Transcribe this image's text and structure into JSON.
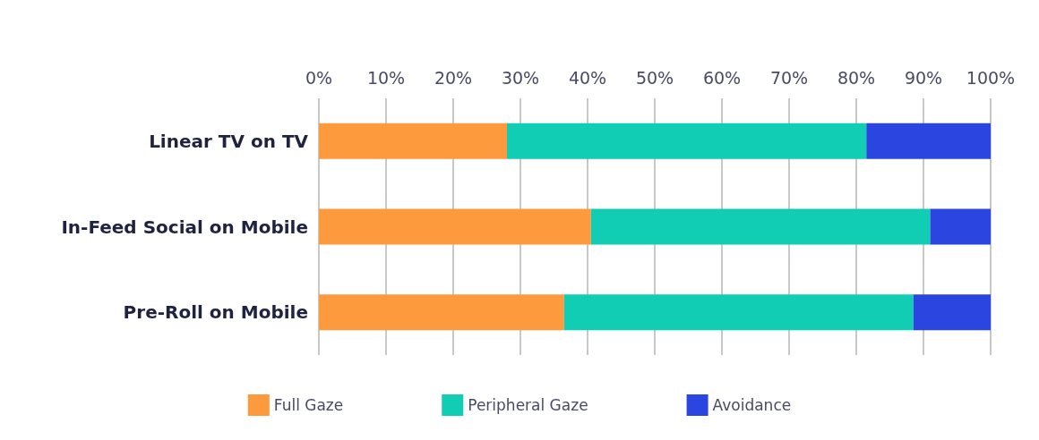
{
  "chart_data": {
    "type": "bar",
    "orientation": "horizontal",
    "stacked": true,
    "categories": [
      "Linear TV on TV",
      "In-Feed Social on Mobile",
      "Pre-Roll on Mobile"
    ],
    "series": [
      {
        "name": "Full Gaze",
        "color": "#fd9a3e",
        "values": [
          28,
          40.5,
          36.5
        ]
      },
      {
        "name": "Peripheral Gaze",
        "color": "#10cdb4",
        "values": [
          53.5,
          50.5,
          52
        ]
      },
      {
        "name": "Avoidance",
        "color": "#2b45e0",
        "values": [
          18.5,
          9,
          11.5
        ]
      }
    ],
    "xlim": [
      0,
      100
    ],
    "xticks": [
      {
        "value": 0,
        "label": "0%"
      },
      {
        "value": 10,
        "label": "10%"
      },
      {
        "value": 20,
        "label": "20%"
      },
      {
        "value": 30,
        "label": "30%"
      },
      {
        "value": 40,
        "label": "40%"
      },
      {
        "value": 50,
        "label": "50%"
      },
      {
        "value": 60,
        "label": "60%"
      },
      {
        "value": 70,
        "label": "70%"
      },
      {
        "value": 80,
        "label": "80%"
      },
      {
        "value": 90,
        "label": "90%"
      },
      {
        "value": 100,
        "label": "100%"
      }
    ],
    "grid": "x",
    "legend": "bottom"
  }
}
